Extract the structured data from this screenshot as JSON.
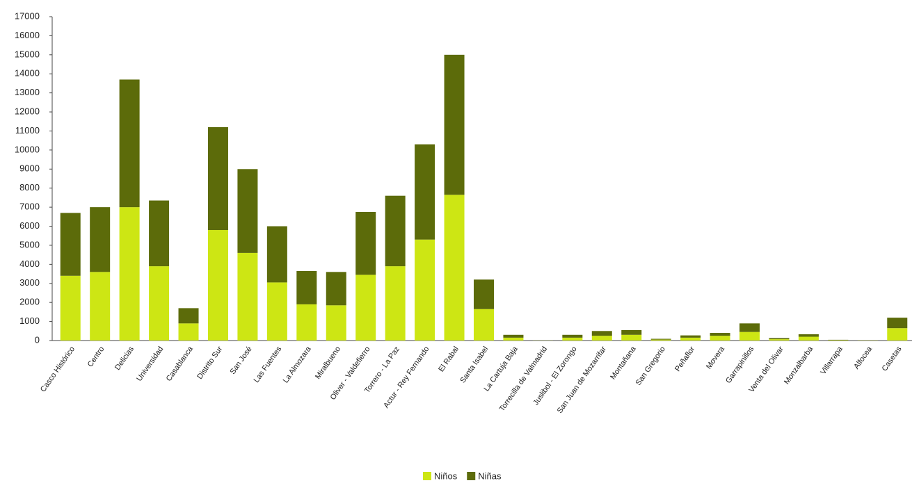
{
  "chart_data": {
    "type": "stacked_bar",
    "categories": [
      "Casco Histórico",
      "Centro",
      "Delicias",
      "Universidad",
      "Casablanca",
      "Distrito Sur",
      "San José",
      "Las Fuentes",
      "La Almozara",
      "Miralbueno",
      "Oliver - Valdefierro",
      "Torrero - La Paz",
      "Actur - Rey Fernando",
      "El Rabal",
      "Santa Isabel",
      "La Cartuja Baja",
      "Torrecilla de Valmadrid",
      "Juslibol - El Zorongo",
      "San Juan de Mozarrifar",
      "Montañana",
      "San Gregorio",
      "Peñaflor",
      "Movera",
      "Garrapinillos",
      "Venta del Olivar",
      "Monzalbarba",
      "Villarrapa",
      "Alfocea",
      "Casetas"
    ],
    "series": [
      {
        "name": "Niños",
        "color": "#cde614",
        "values": [
          3400,
          3600,
          7000,
          3900,
          900,
          5800,
          4600,
          3050,
          1900,
          1850,
          3450,
          3900,
          5300,
          7650,
          1650,
          150,
          5,
          150,
          250,
          300,
          50,
          150,
          250,
          450,
          70,
          200,
          20,
          10,
          650
        ]
      },
      {
        "name": "Niñas",
        "color": "#5c6b0a",
        "values": [
          3300,
          3400,
          6700,
          3450,
          800,
          5400,
          4400,
          2950,
          1750,
          1750,
          3300,
          3700,
          5000,
          7350,
          1550,
          150,
          5,
          150,
          250,
          250,
          40,
          120,
          150,
          450,
          60,
          130,
          20,
          10,
          550
        ]
      }
    ],
    "ylim": [
      0,
      17000
    ],
    "yticks": [
      0,
      1000,
      2000,
      3000,
      4000,
      5000,
      6000,
      7000,
      8000,
      9000,
      10000,
      11000,
      12000,
      13000,
      14000,
      15000,
      16000,
      17000
    ],
    "legend": "bottom"
  }
}
